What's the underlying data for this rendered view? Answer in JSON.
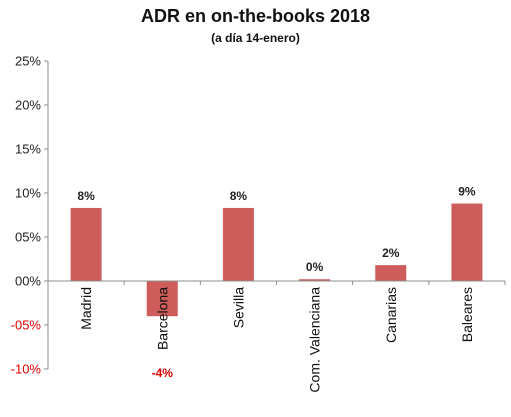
{
  "chart_data": {
    "type": "bar",
    "title": "ADR en on-the-books 2018",
    "subtitle": "(a día 14-enero)",
    "categories": [
      "Madrid",
      "Barcelona",
      "Sevilla",
      "Com. Valenciana",
      "Canarias",
      "Baleares"
    ],
    "values": [
      8.3,
      -4.0,
      8.3,
      0.2,
      1.8,
      8.8
    ],
    "data_labels": [
      "8%",
      "-4%",
      "8%",
      "0%",
      "2%",
      "9%"
    ],
    "ylim": [
      -10,
      25
    ],
    "yticks": [
      25,
      20,
      15,
      10,
      5,
      0,
      -5,
      -10
    ],
    "ytick_labels": [
      "25%",
      "20%",
      "15%",
      "10%",
      "05%",
      "00%",
      "-05%",
      "-10%"
    ],
    "xlabel": "",
    "ylabel": "",
    "grid": false,
    "legend": "none",
    "colors": {
      "bar": "#cd5c5a",
      "negative_text": "#e00000",
      "axis": "#8c8c8c"
    }
  }
}
